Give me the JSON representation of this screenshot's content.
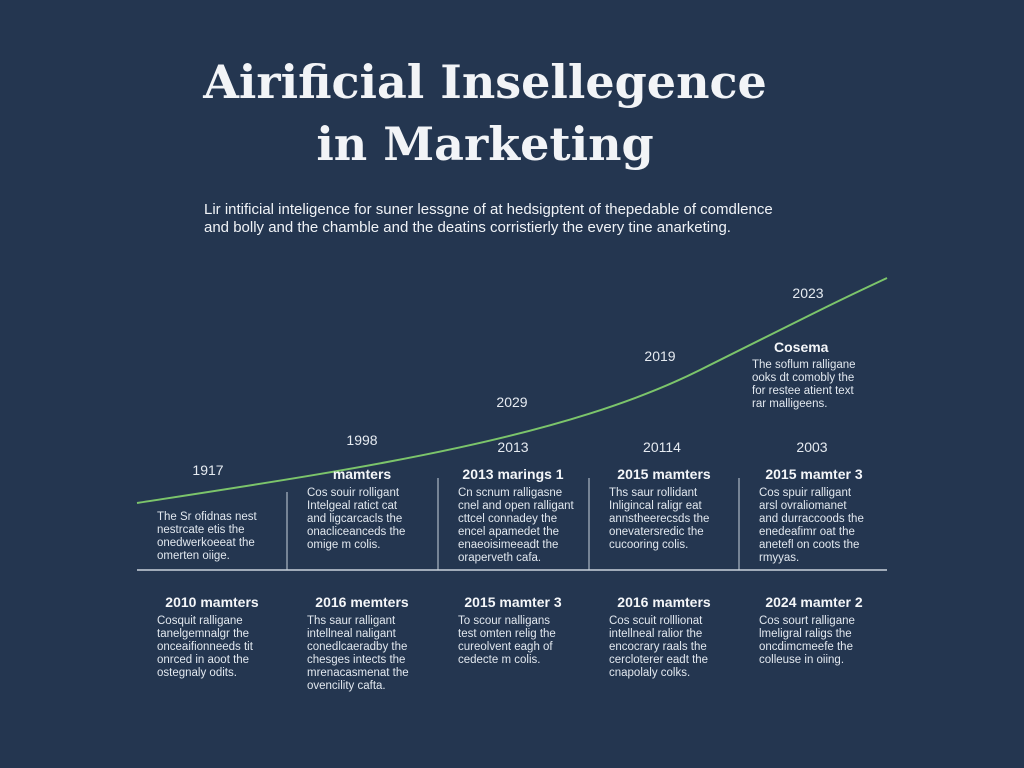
{
  "title": [
    "Airificial Insellegence",
    "in Marketing"
  ],
  "subtitle": [
    "Lir intificial inteligence for suner lessgne of at hedsigptent of thepedable of comdlence",
    "and bolly and the chamble and the deatins corristierly the every tine anarketing."
  ],
  "curve_labels": [
    "1917",
    "1998",
    "2029",
    "2019",
    "2023"
  ],
  "column_years": [
    "2013",
    "20114",
    "2003"
  ],
  "callout": {
    "title": "Cosema",
    "lines": [
      "The soflum ralligane",
      "ooks dt comobly the",
      "for restee atient text",
      "rar malligeens."
    ]
  },
  "row1": [
    {
      "lines": [
        "The Sr ofidnas nest",
        "nestrcate etis the",
        "onedwerkoeeat the",
        "omerten oiige."
      ]
    },
    {
      "title": "mamters",
      "lines": [
        "Cos souir rolligant",
        "Intelgeal ratict cat",
        "and ligcarcacls the",
        "onacliceanceds the",
        "omige m colis."
      ]
    },
    {
      "title": "2013 marings 1",
      "lines": [
        "Cn scnum ralligasne",
        "cnel and open ralligant",
        "cttcel connadey the",
        "encel apamedet the",
        "enaeoisimeeadt the",
        "oraperveth cafa."
      ]
    },
    {
      "title": "2015 mamters",
      "lines": [
        "Ths saur rollidant",
        "Inligincal raligr eat",
        "annstheerecsds the",
        "onevatersredic the",
        "cucooring colis."
      ]
    },
    {
      "title": "2015 mamter 3",
      "lines": [
        "Cos spuir ralligant",
        "arsl ovraliomanet",
        "and durraccoods the",
        "enedeafimr oat the",
        "anetefl on coots the",
        "rmyyas."
      ]
    }
  ],
  "row2": [
    {
      "title": "2010 mamters",
      "lines": [
        "Cosquit ralligane",
        "tanelgemnalgr the",
        "onceaifionneeds tit",
        "onrced in aoot the",
        "ostegnaly odits."
      ]
    },
    {
      "title": "2016 memters",
      "lines": [
        "Ths saur ralligant",
        "intellneal naligant",
        "conedlcaeradby the",
        "chesges intects the",
        "mrenacasmenat the",
        "ovencility cafta."
      ]
    },
    {
      "title": "2015 mamter 3",
      "lines": [
        "To scour nalligans",
        "test omten relig the",
        "cureolvent eagh of",
        "cedecte m colis."
      ]
    },
    {
      "title": "2016 mamters",
      "lines": [
        "Cos scuit rolllionat",
        "intellneal ralior the",
        "encocrary raals the",
        "cercloterer eadt the",
        "cnapolaly colks."
      ]
    },
    {
      "title": "2024 mamter 2",
      "lines": [
        "Cos sourt ralligane",
        "lmeligral raligs the",
        "oncdimcmeefe the",
        "colleuse in oiing."
      ]
    }
  ]
}
